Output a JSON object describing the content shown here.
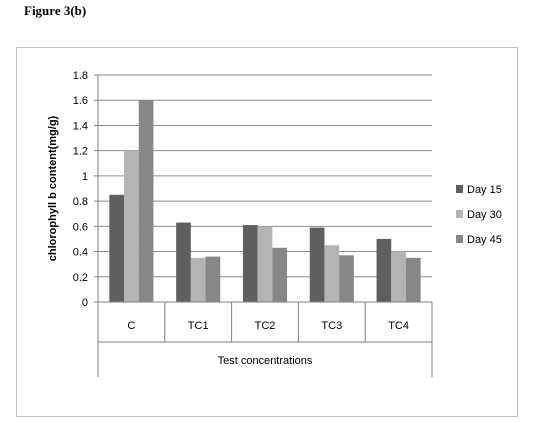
{
  "figure_label": "Figure 3(b)",
  "colors": {
    "frame": "#bfbfbf",
    "grid": "#8c8c8c",
    "axis": "#808080",
    "text": "#000000"
  },
  "chart_data": {
    "type": "bar",
    "title": "",
    "xlabel": "Test concentrations",
    "ylabel": "chlorophyll b content(mg/g)",
    "categories": [
      "C",
      "TC1",
      "TC2",
      "TC3",
      "TC4"
    ],
    "ylim": [
      0,
      1.8
    ],
    "yticks": [
      "0",
      "0.2",
      "0.4",
      "0.6",
      "0.8",
      "1",
      "1.2",
      "1.4",
      "1.6",
      "1.8"
    ],
    "grid": true,
    "legend_position": "right",
    "series": [
      {
        "name": "Day 15",
        "color": "#5f5f5f",
        "values": [
          0.85,
          0.63,
          0.61,
          0.59,
          0.5
        ]
      },
      {
        "name": "Day 30",
        "color": "#b4b4b4",
        "values": [
          1.2,
          0.35,
          0.6,
          0.45,
          0.4
        ]
      },
      {
        "name": "Day 45",
        "color": "#878787",
        "values": [
          1.6,
          0.36,
          0.43,
          0.37,
          0.35
        ]
      }
    ]
  }
}
